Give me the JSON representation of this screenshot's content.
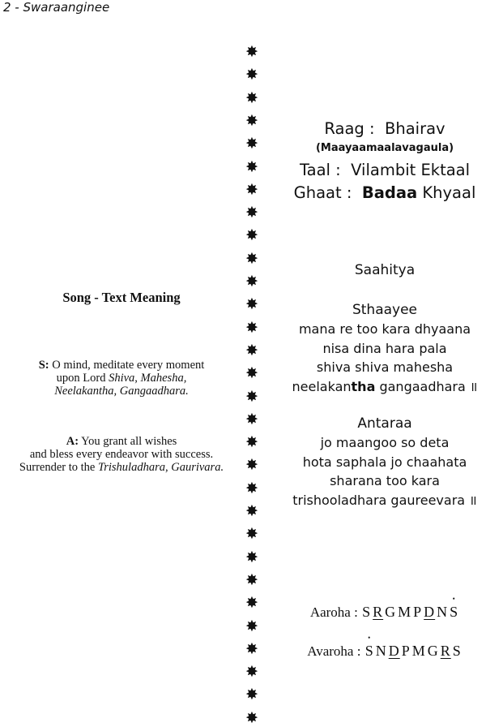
{
  "header": "2 - Swaraanginee",
  "separator": {
    "glyph": "✸",
    "count": 30,
    "icon": "star-icon"
  },
  "raag": {
    "label": "Raag :",
    "value": "Bhairav",
    "subtitle": "(Maayaamaalavagaula)"
  },
  "taal": {
    "label": "Taal :",
    "value": "Vilambit Ektaal"
  },
  "ghaat": {
    "label": "Ghaat :",
    "value_bold": "Badaa",
    "value_rest": " Khyaal"
  },
  "sahitya_title": "Saahitya",
  "sthaayee": {
    "title": "Sthaayee",
    "lines": [
      "mana re too kara dhyaana",
      "nisa dina hara pala",
      "shiva shiva mahesha"
    ],
    "last_line": {
      "pre": "neelakan",
      "bold": "tha",
      "post": " gangaadhara ॥"
    }
  },
  "antaraa": {
    "title": "Antaraa",
    "lines": [
      "jo maangoo so deta",
      "hota saphala jo chaahata",
      "sharana too kara",
      "trishooladhara gaureevara ॥"
    ]
  },
  "meaning": {
    "title": "Song - Text Meaning",
    "s": {
      "label": "S:",
      "line1": " O mind, meditate every moment",
      "line2_pre": "upon Lord ",
      "line2_i1": "Shiva",
      "line2_mid": ", ",
      "line2_i2": "Mahesha,",
      "line3": "Neelakantha, Gangaadhara."
    },
    "a": {
      "label": "A:",
      "line1": " You grant all wishes",
      "line2": "and bless every endeavor with success.",
      "line3_pre": "Surrender to the ",
      "line3_i1": "Trishuladhara",
      "line3_mid": ", ",
      "line3_i2": "Gaurivara."
    }
  },
  "aaroha": {
    "label": "Aaroha :",
    "notes": [
      {
        "n": "S"
      },
      {
        "n": "R",
        "komal": true
      },
      {
        "n": "G"
      },
      {
        "n": "M"
      },
      {
        "n": "P"
      },
      {
        "n": "D",
        "komal": true
      },
      {
        "n": "N"
      },
      {
        "n": "S",
        "taar": true
      }
    ]
  },
  "avaroha": {
    "label": "Avaroha :",
    "notes": [
      {
        "n": "S",
        "taar": true
      },
      {
        "n": "N"
      },
      {
        "n": "D",
        "komal": true
      },
      {
        "n": "P"
      },
      {
        "n": "M"
      },
      {
        "n": "G"
      },
      {
        "n": "R",
        "komal": true
      },
      {
        "n": "S"
      }
    ]
  }
}
